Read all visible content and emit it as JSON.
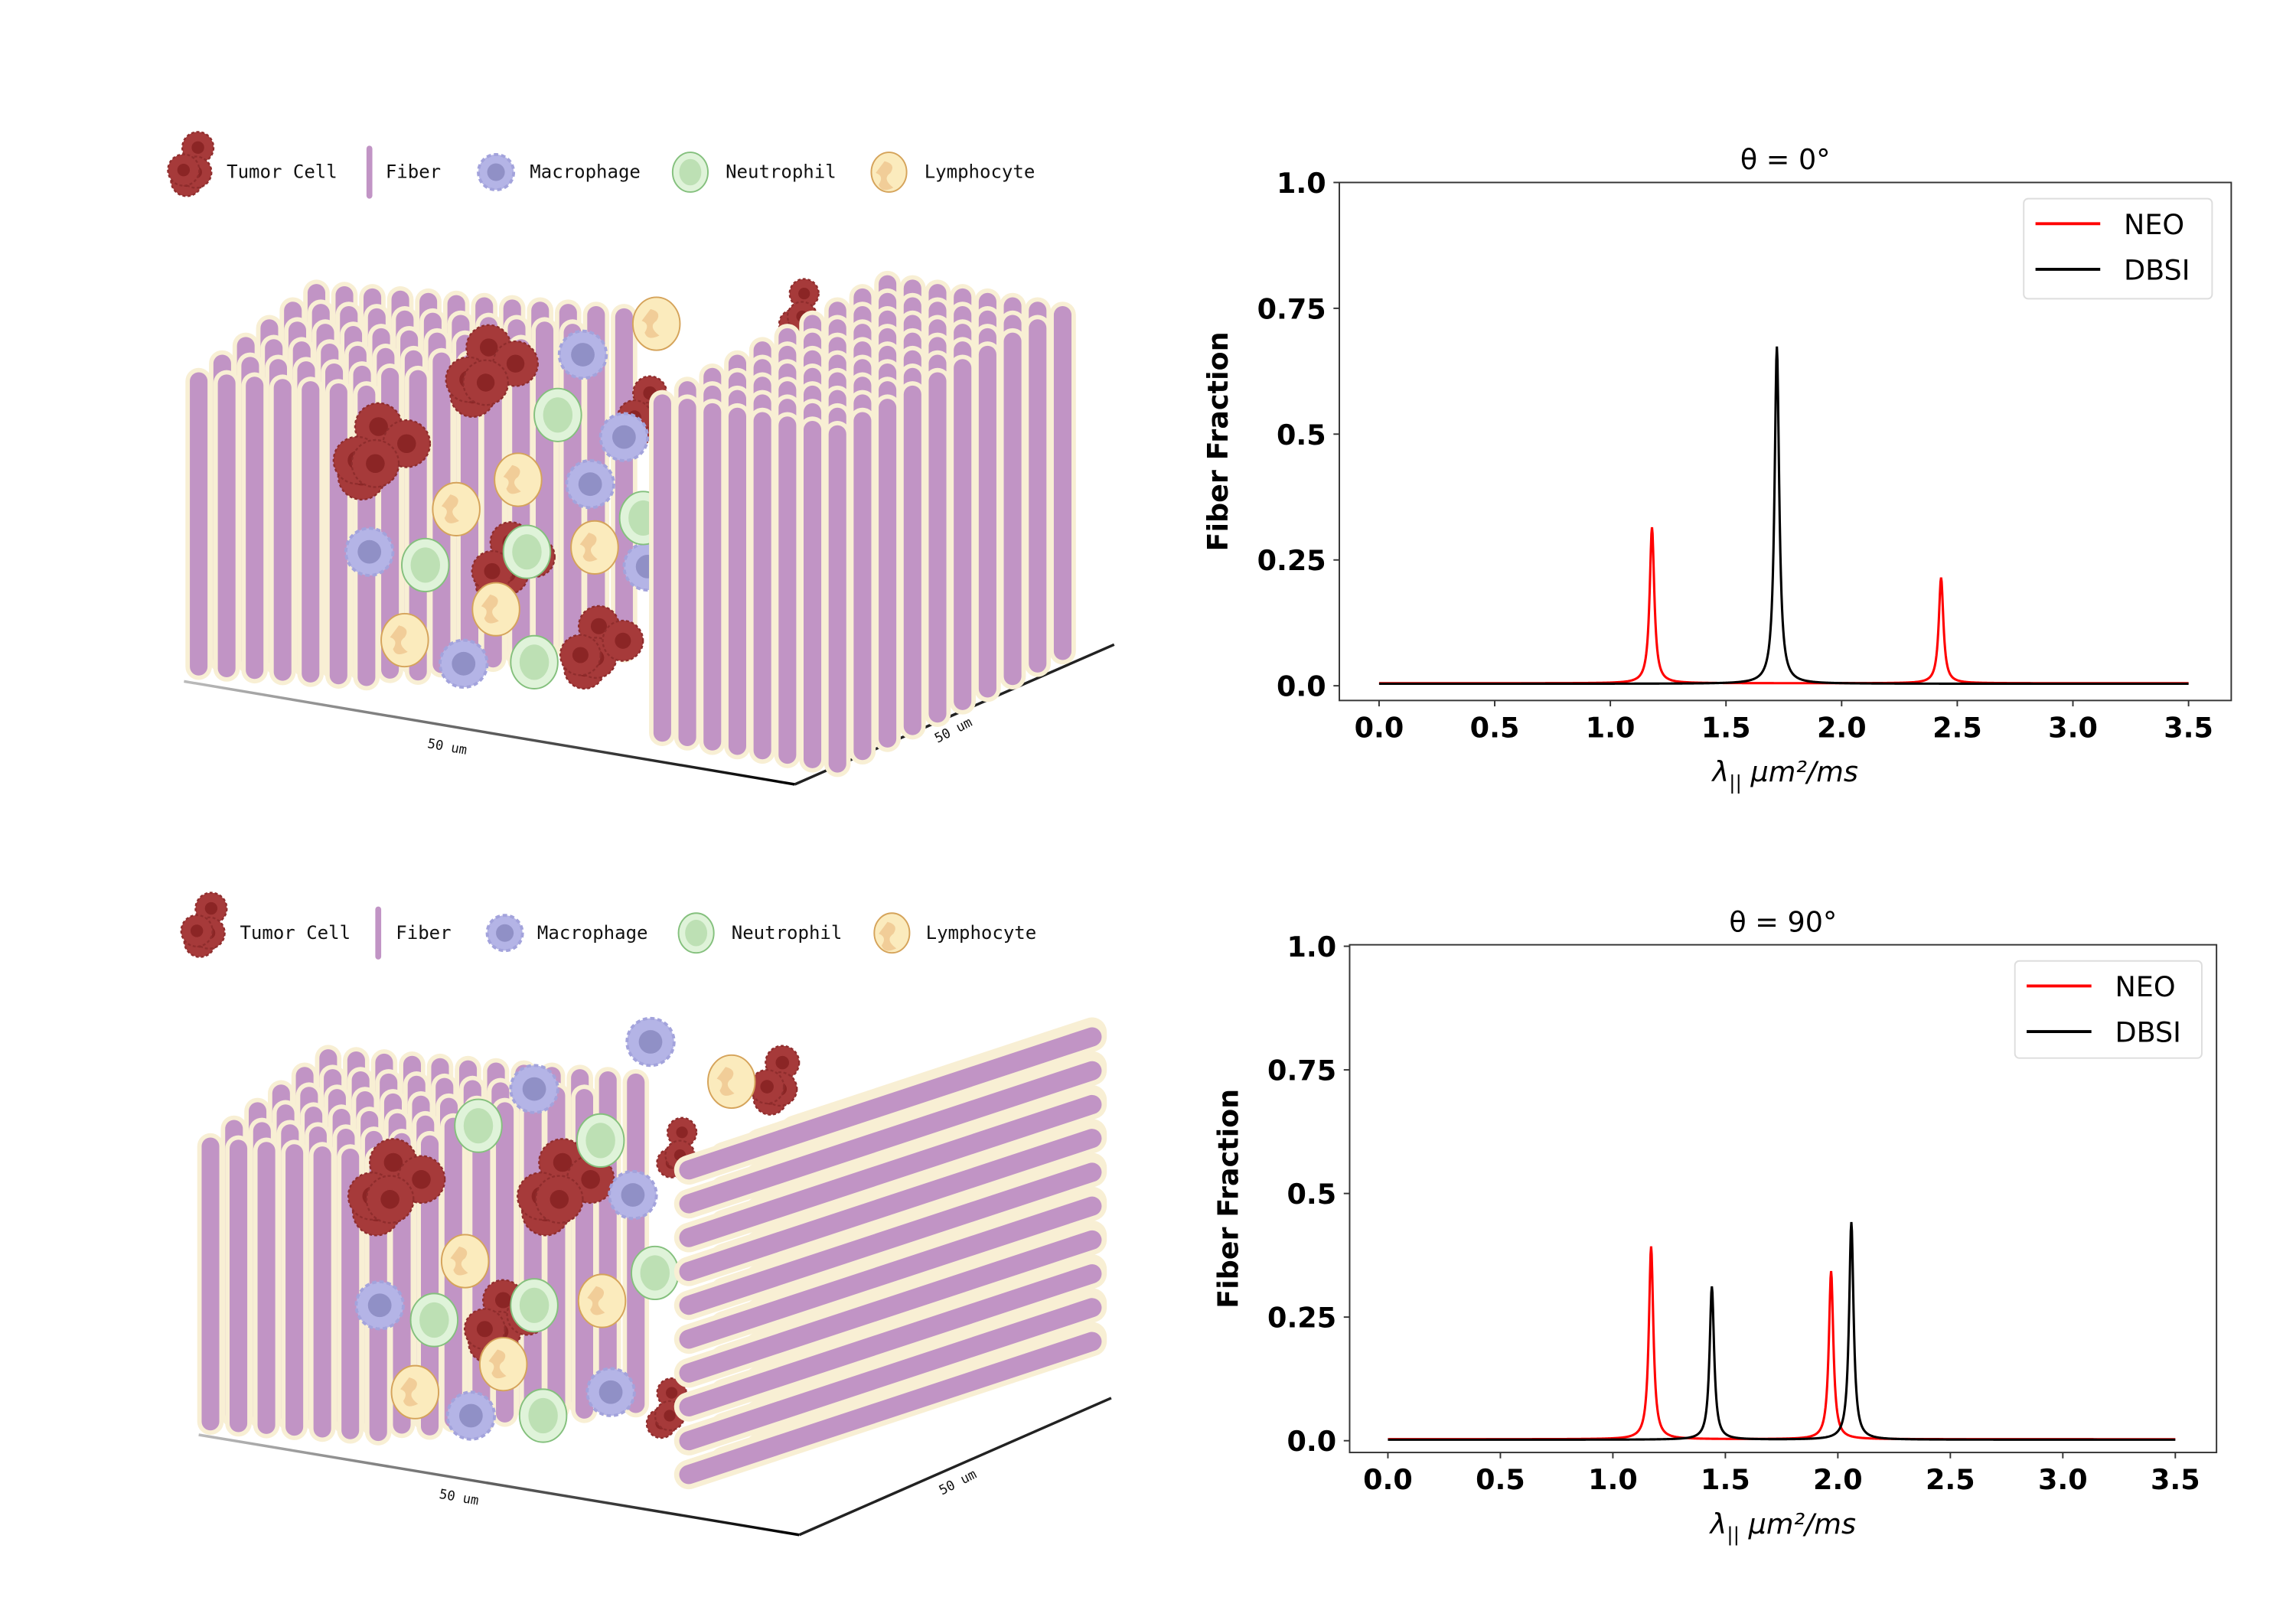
{
  "colors": {
    "fiber": "#c194c5",
    "fiber_border": "#f8efd4",
    "tumor": "#a63a3a",
    "tumor_nucleus": "#8b2525",
    "macrophage": "#b4b4e6",
    "macrophage_nucleus": "#9090c6",
    "neutrophil": "#dff3d9",
    "neutrophil_nucleus": "#bde0b4",
    "lymphocyte": "#fbebbd",
    "lymphocyte_nucleus": "#f1cd98"
  },
  "panels": [
    {
      "legend": [
        {
          "label": "Tumor Cell",
          "icon": "tumor-cell-icon"
        },
        {
          "label": "Fiber",
          "icon": "fiber-icon"
        },
        {
          "label": "Macrophage",
          "icon": "macrophage-icon"
        },
        {
          "label": "Neutrophil",
          "icon": "neutrophil-icon"
        },
        {
          "label": "Lymphocyte",
          "icon": "lymphocyte-icon"
        }
      ],
      "scale_x": "50 um",
      "scale_y": "50 um"
    },
    {
      "legend": [
        {
          "label": "Tumor Cell",
          "icon": "tumor-cell-icon"
        },
        {
          "label": "Fiber",
          "icon": "fiber-icon"
        },
        {
          "label": "Macrophage",
          "icon": "macrophage-icon"
        },
        {
          "label": "Neutrophil",
          "icon": "neutrophil-icon"
        },
        {
          "label": "Lymphocyte",
          "icon": "lymphocyte-icon"
        }
      ],
      "scale_x": "50 um",
      "scale_y": "50 um"
    }
  ],
  "chart_data": [
    {
      "type": "line",
      "title": "θ = 0°",
      "xlabel": {
        "symbol": "λ",
        "subscript": "||",
        "unit": " μm²/ms"
      },
      "ylabel": "Fiber Fraction",
      "xlim": [
        -0.15,
        3.6
      ],
      "ylim": [
        -0.04,
        1.0
      ],
      "xticks": [
        0.0,
        0.5,
        1.0,
        1.5,
        2.0,
        2.5,
        3.0,
        3.5
      ],
      "xtick_labels": [
        "0.0",
        "0.5",
        "1.0",
        "1.5",
        "2.0",
        "2.5",
        "3.0",
        "3.5"
      ],
      "yticks": [
        0.0,
        0.25,
        0.5,
        0.75,
        1.0
      ],
      "ytick_labels": [
        "0.0",
        "0.25",
        "0.5",
        "0.75",
        "1.0"
      ],
      "grid": false,
      "legend_placement": "top-right",
      "series": [
        {
          "name": "NEO",
          "color": "#ff0000",
          "baseline": 0.005,
          "x_range": [
            0,
            3.5
          ],
          "peaks": [
            {
              "x": 1.18,
              "y": 0.31
            },
            {
              "x": 2.43,
              "y": 0.21
            }
          ]
        },
        {
          "name": "DBSI",
          "color": "#000000",
          "baseline": 0.004,
          "x_range": [
            0,
            3.5
          ],
          "peaks": [
            {
              "x": 1.72,
              "y": 0.67
            }
          ]
        }
      ]
    },
    {
      "type": "line",
      "title": "θ = 90°",
      "xlabel": {
        "symbol": "λ",
        "subscript": "||",
        "unit": " μm²/ms"
      },
      "ylabel": "Fiber Fraction",
      "xlim": [
        -0.15,
        3.6
      ],
      "ylim": [
        -0.04,
        1.0
      ],
      "xticks": [
        0.0,
        0.5,
        1.0,
        1.5,
        2.0,
        2.5,
        3.0,
        3.5
      ],
      "xtick_labels": [
        "0.0",
        "0.5",
        "1.0",
        "1.5",
        "2.0",
        "2.5",
        "3.0",
        "3.5"
      ],
      "yticks": [
        0.0,
        0.25,
        0.5,
        0.75,
        1.0
      ],
      "ytick_labels": [
        "0.0",
        "0.25",
        "0.5",
        "0.75",
        "1.0"
      ],
      "grid": false,
      "legend_placement": "top-right",
      "series": [
        {
          "name": "NEO",
          "color": "#ff0000",
          "baseline": 0.003,
          "x_range": [
            0,
            3.5
          ],
          "peaks": [
            {
              "x": 1.17,
              "y": 0.39
            },
            {
              "x": 1.97,
              "y": 0.34
            }
          ]
        },
        {
          "name": "DBSI",
          "color": "#000000",
          "baseline": 0.002,
          "x_range": [
            0,
            3.5
          ],
          "peaks": [
            {
              "x": 1.44,
              "y": 0.31
            },
            {
              "x": 2.06,
              "y": 0.44
            }
          ]
        }
      ]
    }
  ]
}
